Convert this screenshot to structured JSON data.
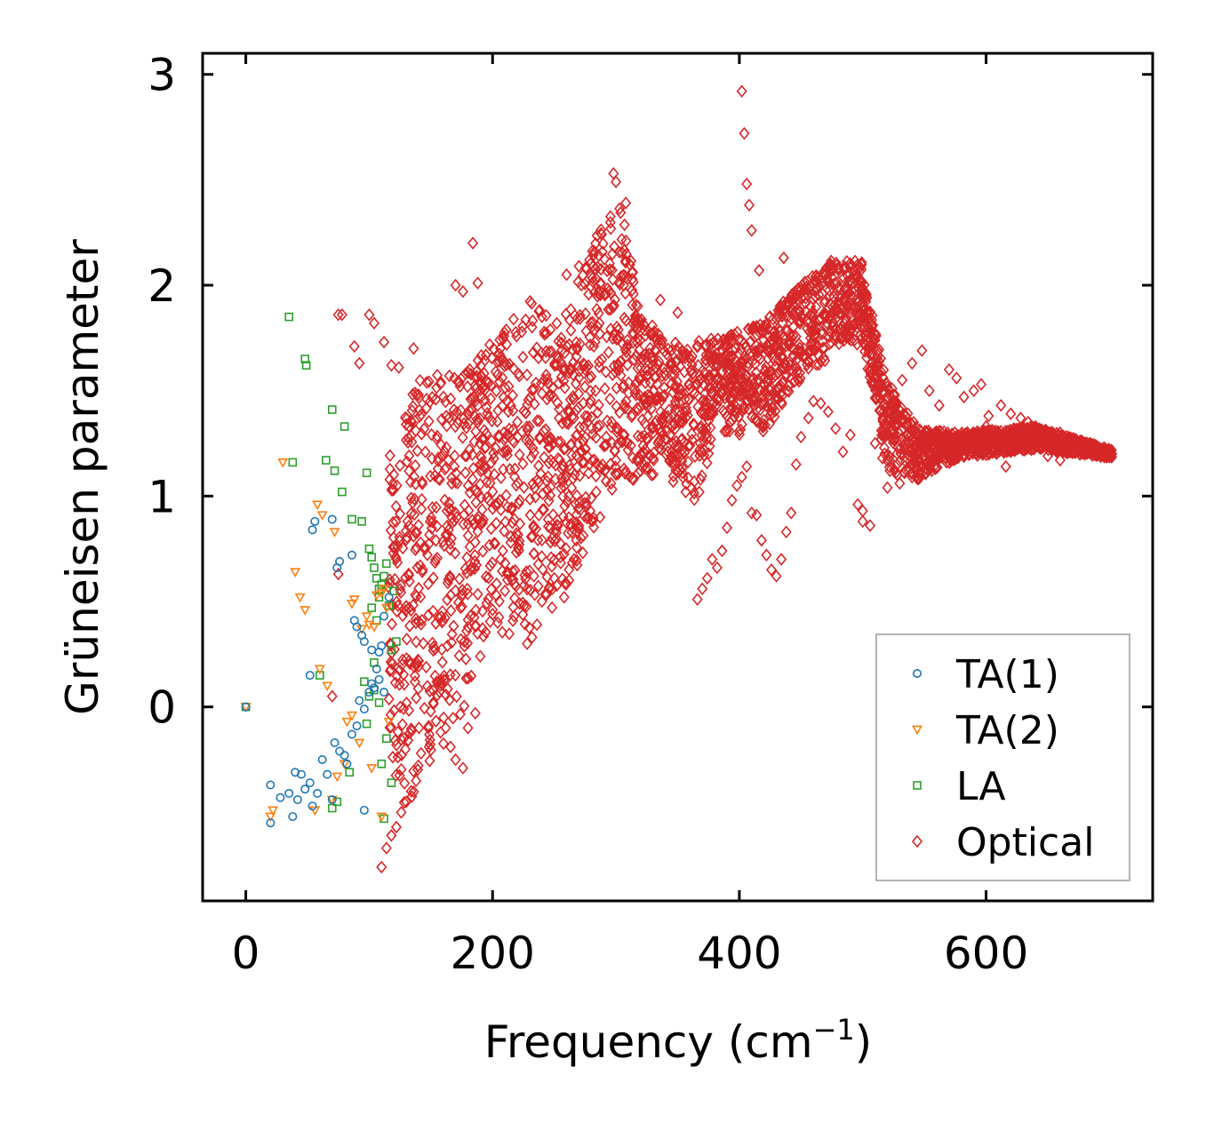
{
  "chart_data": {
    "type": "scatter",
    "title": "",
    "xlabel": "Frequency (cm",
    "xlabel_sup": "−1",
    "xlabel_close": ")",
    "ylabel": "Grüneisen parameter",
    "xlim": [
      -35,
      735
    ],
    "ylim": [
      -0.92,
      3.1
    ],
    "xticks": [
      0,
      200,
      400,
      600
    ],
    "yticks": [
      0,
      1,
      2,
      3
    ],
    "xtick_labels": [
      "0",
      "200",
      "400",
      "600"
    ],
    "ytick_labels": [
      "0",
      "1",
      "2",
      "3"
    ],
    "grid": false,
    "legend_position": "bottom-right",
    "series": [
      {
        "name": "TA(1)",
        "marker": "circle",
        "color": "#1f77b4",
        "points": [
          [
            0,
            0
          ],
          [
            20,
            -0.55
          ],
          [
            20,
            -0.37
          ],
          [
            28,
            -0.43
          ],
          [
            35,
            -0.41
          ],
          [
            38,
            -0.52
          ],
          [
            40,
            -0.31
          ],
          [
            42,
            -0.44
          ],
          [
            45,
            -0.32
          ],
          [
            48,
            -0.39
          ],
          [
            52,
            -0.36
          ],
          [
            54,
            -0.47
          ],
          [
            58,
            -0.41
          ],
          [
            62,
            -0.25
          ],
          [
            66,
            -0.32
          ],
          [
            70,
            -0.44
          ],
          [
            72,
            -0.17
          ],
          [
            76,
            -0.21
          ],
          [
            80,
            -0.23
          ],
          [
            82,
            -0.27
          ],
          [
            86,
            -0.13
          ],
          [
            90,
            -0.09
          ],
          [
            92,
            0.03
          ],
          [
            96,
            -0.01
          ],
          [
            100,
            0.07
          ],
          [
            102,
            0.11
          ],
          [
            96,
            -0.49
          ],
          [
            52,
            0.15
          ],
          [
            54,
            0.84
          ],
          [
            56,
            0.88
          ],
          [
            70,
            0.89
          ],
          [
            74,
            0.66
          ],
          [
            76,
            0.69
          ],
          [
            86,
            0.72
          ],
          [
            88,
            0.41
          ],
          [
            90,
            0.38
          ],
          [
            94,
            0.34
          ],
          [
            96,
            0.31
          ],
          [
            102,
            0.27
          ],
          [
            108,
            0.26
          ],
          [
            110,
            0.29
          ],
          [
            112,
            0.43
          ],
          [
            116,
            0.52
          ],
          [
            104,
            0.09
          ],
          [
            108,
            0.13
          ],
          [
            112,
            0.07
          ],
          [
            106,
            0.18
          ]
        ]
      },
      {
        "name": "TA(2)",
        "marker": "triangle-down",
        "color": "#ff7f0e",
        "points": [
          [
            0,
            0
          ],
          [
            20,
            -0.52
          ],
          [
            22,
            -0.49
          ],
          [
            30,
            1.16
          ],
          [
            40,
            0.64
          ],
          [
            44,
            0.52
          ],
          [
            48,
            0.46
          ],
          [
            56,
            -0.49
          ],
          [
            58,
            0.96
          ],
          [
            60,
            0.18
          ],
          [
            62,
            0.91
          ],
          [
            66,
            0.1
          ],
          [
            70,
            -0.44
          ],
          [
            72,
            0.83
          ],
          [
            74,
            -0.33
          ],
          [
            80,
            -0.27
          ],
          [
            82,
            -0.07
          ],
          [
            86,
            0.49
          ],
          [
            88,
            0.51
          ],
          [
            92,
            -0.17
          ],
          [
            94,
            0.37
          ],
          [
            98,
            0.43
          ],
          [
            100,
            0.39
          ],
          [
            102,
            -0.29
          ],
          [
            104,
            0.38
          ],
          [
            106,
            0.53
          ],
          [
            110,
            0.54
          ],
          [
            112,
            0.56
          ],
          [
            114,
            0.47
          ],
          [
            116,
            -0.07
          ],
          [
            110,
            -0.52
          ],
          [
            86,
            -0.04
          ]
        ]
      },
      {
        "name": "LA",
        "marker": "square",
        "color": "#2ca02c",
        "points": [
          [
            0,
            0
          ],
          [
            35,
            1.85
          ],
          [
            38,
            1.16
          ],
          [
            48,
            1.65
          ],
          [
            49,
            1.62
          ],
          [
            60,
            0.15
          ],
          [
            65,
            1.17
          ],
          [
            70,
            1.41
          ],
          [
            72,
            1.12
          ],
          [
            78,
            1.02
          ],
          [
            80,
            1.33
          ],
          [
            86,
            0.89
          ],
          [
            94,
            0.88
          ],
          [
            96,
            0.12
          ],
          [
            98,
            1.11
          ],
          [
            100,
            0.75
          ],
          [
            102,
            0.71
          ],
          [
            104,
            0.66
          ],
          [
            106,
            0.61
          ],
          [
            108,
            0.56
          ],
          [
            110,
            0.58
          ],
          [
            112,
            0.62
          ],
          [
            114,
            0.68
          ],
          [
            116,
            0.48
          ],
          [
            118,
            0.27
          ],
          [
            120,
            0.55
          ],
          [
            122,
            0.31
          ],
          [
            104,
            0.21
          ],
          [
            108,
            0.02
          ],
          [
            110,
            -0.27
          ],
          [
            112,
            -0.53
          ],
          [
            114,
            -0.15
          ],
          [
            118,
            -0.36
          ],
          [
            102,
            0.47
          ],
          [
            106,
            0.41
          ],
          [
            108,
            0.52
          ],
          [
            104,
            0.08
          ],
          [
            100,
            0.05
          ],
          [
            98,
            -0.08
          ],
          [
            84,
            -0.31
          ],
          [
            70,
            -0.48
          ],
          [
            74,
            -0.45
          ]
        ]
      },
      {
        "name": "Optical",
        "marker": "diamond",
        "color": "#d62728",
        "points": [
          [
            402,
            2.92
          ],
          [
            404,
            2.72
          ],
          [
            406,
            2.48
          ],
          [
            408,
            2.38
          ],
          [
            410,
            2.26
          ],
          [
            298,
            2.53
          ],
          [
            300,
            2.49
          ],
          [
            308,
            2.39
          ],
          [
            184,
            2.2
          ],
          [
            176,
            1.97
          ],
          [
            170,
            2.0
          ],
          [
            188,
            2.01
          ],
          [
            260,
            2.05
          ],
          [
            270,
            2.09
          ],
          [
            272,
            2.0
          ],
          [
            336,
            1.93
          ],
          [
            350,
            1.87
          ],
          [
            416,
            2.07
          ],
          [
            436,
            2.13
          ],
          [
            75,
            1.86
          ],
          [
            78,
            1.86
          ],
          [
            100,
            1.86
          ],
          [
            104,
            1.82
          ],
          [
            88,
            1.71
          ],
          [
            92,
            1.63
          ],
          [
            112,
            1.73
          ],
          [
            136,
            1.7
          ],
          [
            118,
            1.62
          ],
          [
            124,
            1.61
          ],
          [
            75,
            0.63
          ],
          [
            70,
            0.05
          ],
          [
            110,
            -0.76
          ],
          [
            114,
            -0.67
          ],
          [
            118,
            -0.61
          ],
          [
            122,
            -0.57
          ],
          [
            126,
            -0.5
          ],
          [
            130,
            -0.45
          ],
          [
            134,
            -0.4
          ],
          [
            138,
            -0.35
          ],
          [
            142,
            -0.22
          ],
          [
            148,
            -0.1
          ],
          [
            152,
            0.02
          ],
          [
            162,
            -0.1
          ],
          [
            166,
            -0.19
          ],
          [
            170,
            -0.25
          ],
          [
            176,
            -0.29
          ],
          [
            180,
            -0.1
          ],
          [
            186,
            -0.03
          ],
          [
            190,
            0.24
          ],
          [
            200,
            0.44
          ],
          [
            210,
            0.55
          ],
          [
            216,
            0.6
          ],
          [
            222,
            0.49
          ],
          [
            228,
            0.3
          ],
          [
            232,
            0.33
          ],
          [
            236,
            0.39
          ],
          [
            240,
            0.5
          ],
          [
            246,
            0.56
          ],
          [
            250,
            0.61
          ],
          [
            258,
            0.52
          ],
          [
            262,
            0.6
          ],
          [
            266,
            0.7
          ],
          [
            270,
            0.86
          ],
          [
            276,
            0.95
          ],
          [
            280,
            0.99
          ],
          [
            284,
            1.02
          ],
          [
            288,
            1.13
          ],
          [
            292,
            1.07
          ],
          [
            296,
            1.06
          ],
          [
            300,
            1.17
          ],
          [
            306,
            1.29
          ],
          [
            312,
            1.24
          ],
          [
            318,
            1.11
          ],
          [
            324,
            1.13
          ],
          [
            330,
            1.18
          ],
          [
            336,
            1.27
          ],
          [
            342,
            1.21
          ],
          [
            348,
            1.32
          ],
          [
            354,
            1.35
          ],
          [
            360,
            1.24
          ],
          [
            366,
            0.51
          ],
          [
            370,
            0.56
          ],
          [
            374,
            0.61
          ],
          [
            378,
            0.7
          ],
          [
            382,
            0.66
          ],
          [
            386,
            0.74
          ],
          [
            390,
            0.85
          ],
          [
            394,
            0.98
          ],
          [
            398,
            1.05
          ],
          [
            402,
            1.09
          ],
          [
            406,
            1.14
          ],
          [
            410,
            0.92
          ],
          [
            414,
            0.91
          ],
          [
            418,
            0.79
          ],
          [
            422,
            0.72
          ],
          [
            426,
            0.65
          ],
          [
            430,
            0.62
          ],
          [
            434,
            0.7
          ],
          [
            438,
            0.83
          ],
          [
            442,
            0.92
          ],
          [
            446,
            1.15
          ],
          [
            450,
            1.28
          ],
          [
            456,
            1.37
          ],
          [
            460,
            1.45
          ],
          [
            466,
            1.44
          ],
          [
            472,
            1.4
          ],
          [
            478,
            1.32
          ],
          [
            484,
            1.21
          ],
          [
            490,
            1.29
          ],
          [
            496,
            0.96
          ],
          [
            500,
            0.88
          ],
          [
            506,
            0.86
          ],
          [
            500,
            0.93
          ],
          [
            510,
            1.25
          ],
          [
            516,
            1.18
          ],
          [
            522,
            1.12
          ],
          [
            528,
            1.1
          ],
          [
            534,
            1.11
          ],
          [
            540,
            1.09
          ],
          [
            546,
            1.1
          ],
          [
            552,
            1.13
          ],
          [
            558,
            1.18
          ],
          [
            564,
            1.22
          ],
          [
            570,
            1.29
          ],
          [
            576,
            1.27
          ],
          [
            582,
            1.25
          ],
          [
            588,
            1.23
          ],
          [
            594,
            1.3
          ],
          [
            600,
            1.33
          ],
          [
            606,
            1.28
          ],
          [
            612,
            1.25
          ],
          [
            618,
            1.28
          ],
          [
            624,
            1.31
          ],
          [
            630,
            1.3
          ],
          [
            636,
            1.27
          ],
          [
            642,
            1.25
          ],
          [
            648,
            1.27
          ],
          [
            654,
            1.29
          ],
          [
            660,
            1.3
          ],
          [
            666,
            1.26
          ],
          [
            672,
            1.24
          ],
          [
            678,
            1.26
          ],
          [
            684,
            1.25
          ],
          [
            690,
            1.23
          ],
          [
            696,
            1.22
          ],
          [
            702,
            1.2
          ],
          [
            520,
            1.36
          ],
          [
            526,
            1.42
          ],
          [
            532,
            1.55
          ],
          [
            540,
            1.63
          ],
          [
            548,
            1.69
          ],
          [
            554,
            1.5
          ],
          [
            562,
            1.43
          ],
          [
            570,
            1.6
          ],
          [
            576,
            1.56
          ],
          [
            582,
            1.47
          ],
          [
            590,
            1.5
          ],
          [
            596,
            1.53
          ],
          [
            602,
            1.38
          ],
          [
            612,
            1.43
          ],
          [
            620,
            1.39
          ],
          [
            628,
            1.37
          ],
          [
            634,
            1.35
          ],
          [
            640,
            1.33
          ],
          [
            540,
            1.11
          ],
          [
            556,
            1.12
          ],
          [
            568,
            1.16
          ],
          [
            616,
            1.14
          ],
          [
            650,
            1.19
          ],
          [
            660,
            1.17
          ],
          [
            520,
            1.04
          ],
          [
            530,
            1.06
          ]
        ]
      }
    ]
  }
}
